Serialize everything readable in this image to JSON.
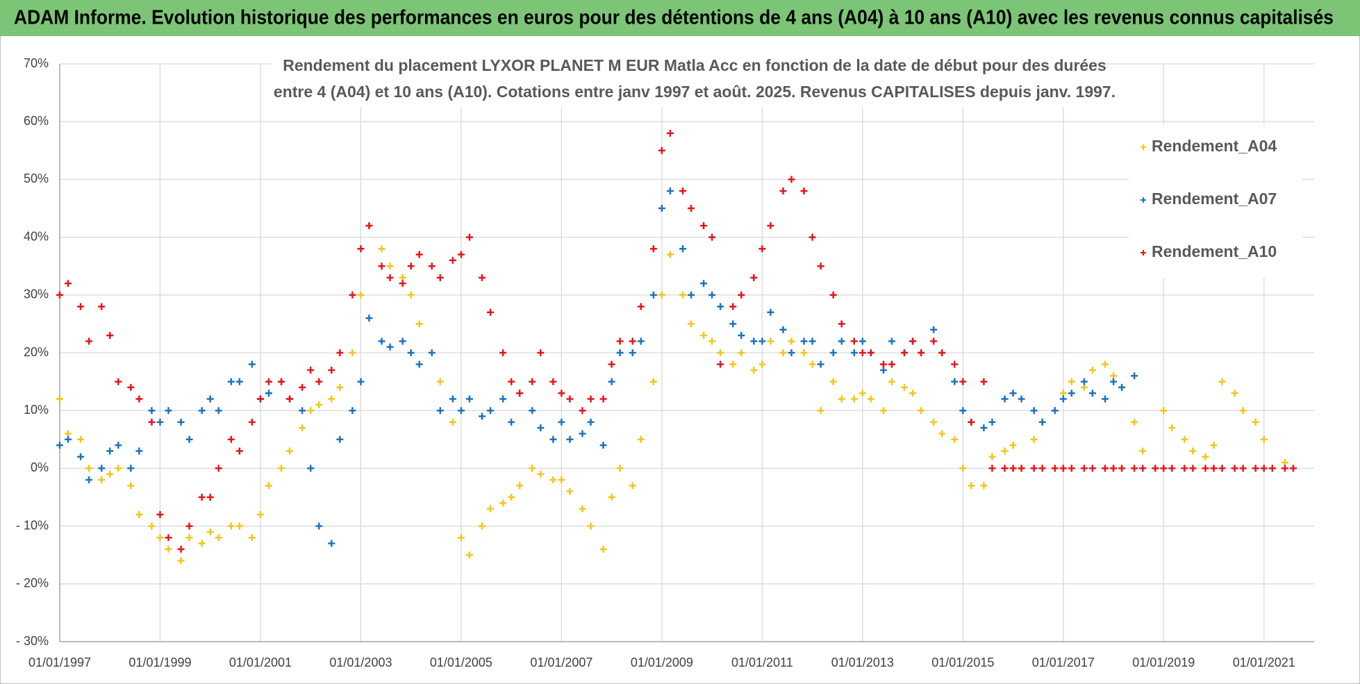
{
  "banner": "ADAM Informe. Evolution historique des performances en euros pour des détentions de 4 ans (A04) à 10 ans (A10) avec les revenus connus capitalisés",
  "chart_data": {
    "type": "scatter",
    "title": "Rendement du placement LYXOR PLANET M EUR Matla Acc en fonction de la date de début pour des durées",
    "subtitle": "entre 4 (A04) et 10 ans (A10). Cotations entre janv 1997 et août. 2025. Revenus CAPITALISES depuis janv. 1997.",
    "x": [
      "01/01/1997",
      "01/03/1997",
      "01/06/1997",
      "01/08/1997",
      "01/11/1997",
      "01/01/1998",
      "01/03/1998",
      "01/06/1998",
      "01/08/1998",
      "01/11/1998",
      "01/01/1999",
      "01/03/1999",
      "01/06/1999",
      "01/08/1999",
      "01/11/1999",
      "01/01/2000",
      "01/03/2000",
      "01/06/2000",
      "01/08/2000",
      "01/11/2000",
      "01/01/2001",
      "01/03/2001",
      "01/06/2001",
      "01/08/2001",
      "01/11/2001",
      "01/01/2002",
      "01/03/2002",
      "01/06/2002",
      "01/08/2002",
      "01/11/2002",
      "01/01/2003",
      "01/03/2003",
      "01/06/2003",
      "01/08/2003",
      "01/11/2003",
      "01/01/2004",
      "01/03/2004",
      "01/06/2004",
      "01/08/2004",
      "01/11/2004",
      "01/01/2005",
      "01/03/2005",
      "01/06/2005",
      "01/08/2005",
      "01/11/2005",
      "01/01/2006",
      "01/03/2006",
      "01/06/2006",
      "01/08/2006",
      "01/11/2006",
      "01/01/2007",
      "01/03/2007",
      "01/06/2007",
      "01/08/2007",
      "01/11/2007",
      "01/01/2008",
      "01/03/2008",
      "01/06/2008",
      "01/08/2008",
      "01/11/2008",
      "01/01/2009",
      "01/03/2009",
      "01/06/2009",
      "01/08/2009",
      "01/11/2009",
      "01/01/2010",
      "01/03/2010",
      "01/06/2010",
      "01/08/2010",
      "01/11/2010",
      "01/01/2011",
      "01/03/2011",
      "01/06/2011",
      "01/08/2011",
      "01/11/2011",
      "01/01/2012",
      "01/03/2012",
      "01/06/2012",
      "01/08/2012",
      "01/11/2012",
      "01/01/2013",
      "01/03/2013",
      "01/06/2013",
      "01/08/2013",
      "01/11/2013",
      "01/01/2014",
      "01/03/2014",
      "01/06/2014",
      "01/08/2014",
      "01/11/2014",
      "01/01/2015",
      "01/03/2015",
      "01/06/2015",
      "01/08/2015",
      "01/11/2015",
      "01/01/2016",
      "01/03/2016",
      "01/06/2016",
      "01/08/2016",
      "01/11/2016",
      "01/01/2017",
      "01/03/2017",
      "01/06/2017",
      "01/08/2017",
      "01/11/2017",
      "01/01/2018",
      "01/03/2018",
      "01/06/2018",
      "01/08/2018",
      "01/11/2018",
      "01/01/2019",
      "01/03/2019",
      "01/06/2019",
      "01/08/2019",
      "01/11/2019",
      "01/01/2020",
      "01/03/2020",
      "01/06/2020",
      "01/08/2020",
      "01/11/2020",
      "01/01/2021",
      "01/03/2021",
      "01/06/2021",
      "01/08/2021",
      "01/11/2021"
    ],
    "series": [
      {
        "name": "Rendement_A04",
        "color": "#f5c518",
        "values": [
          12,
          6,
          5,
          0,
          -2,
          -1,
          0,
          -3,
          -8,
          -10,
          -12,
          -14,
          -16,
          -12,
          -13,
          -11,
          -12,
          -10,
          -10,
          -12,
          -8,
          -3,
          0,
          3,
          7,
          10,
          11,
          12,
          14,
          20,
          30,
          42,
          38,
          35,
          33,
          30,
          25,
          20,
          15,
          8,
          -12,
          -15,
          -10,
          -7,
          -6,
          -5,
          -3,
          0,
          -1,
          -2,
          -2,
          -4,
          -7,
          -10,
          -14,
          -5,
          0,
          -3,
          5,
          15,
          30,
          37,
          30,
          25,
          23,
          22,
          20,
          18,
          20,
          17,
          18,
          22,
          20,
          22,
          20,
          18,
          10,
          15,
          12,
          12,
          13,
          12,
          10,
          15,
          14,
          13,
          10,
          8,
          6,
          5,
          0,
          -3,
          -3,
          2,
          3,
          4,
          0,
          5,
          8,
          10,
          13,
          15,
          14,
          17,
          18,
          16,
          14,
          8,
          3,
          0,
          10,
          7,
          5,
          3,
          2,
          4,
          15,
          13,
          10,
          8,
          5,
          0,
          1,
          null,
          null
        ]
      },
      {
        "name": "Rendement_A07",
        "color": "#1a73bf",
        "values": [
          4,
          5,
          2,
          -2,
          0,
          3,
          4,
          0,
          3,
          10,
          8,
          10,
          8,
          5,
          10,
          12,
          10,
          15,
          15,
          18,
          12,
          13,
          15,
          12,
          10,
          0,
          -10,
          -13,
          5,
          10,
          15,
          26,
          22,
          21,
          22,
          20,
          18,
          20,
          10,
          12,
          10,
          12,
          9,
          10,
          12,
          8,
          13,
          10,
          7,
          5,
          8,
          5,
          6,
          8,
          4,
          15,
          20,
          20,
          22,
          30,
          45,
          48,
          38,
          30,
          32,
          30,
          28,
          25,
          23,
          22,
          22,
          27,
          24,
          20,
          22,
          22,
          18,
          20,
          22,
          20,
          22,
          20,
          17,
          22,
          20,
          22,
          20,
          24,
          20,
          15,
          10,
          8,
          7,
          8,
          12,
          13,
          12,
          10,
          8,
          10,
          12,
          13,
          15,
          13,
          12,
          15,
          14,
          16,
          null,
          null,
          null,
          null,
          null,
          null,
          null,
          null,
          null,
          null,
          null,
          null,
          null,
          null,
          null,
          null,
          null
        ]
      },
      {
        "name": "Rendement_A10",
        "color": "#e8141b",
        "values": [
          30,
          32,
          28,
          22,
          28,
          23,
          15,
          14,
          12,
          8,
          -8,
          -12,
          -14,
          -10,
          -5,
          -5,
          0,
          5,
          3,
          8,
          12,
          15,
          15,
          12,
          14,
          17,
          15,
          17,
          20,
          30,
          38,
          42,
          35,
          33,
          32,
          35,
          37,
          35,
          33,
          36,
          37,
          40,
          33,
          27,
          20,
          15,
          13,
          15,
          20,
          15,
          13,
          12,
          10,
          12,
          12,
          18,
          22,
          22,
          28,
          38,
          55,
          58,
          48,
          45,
          42,
          40,
          18,
          28,
          30,
          33,
          38,
          42,
          48,
          50,
          48,
          40,
          35,
          30,
          25,
          22,
          20,
          20,
          18,
          18,
          20,
          22,
          20,
          22,
          20,
          18,
          15,
          8,
          15,
          0,
          0,
          0,
          0,
          0,
          0,
          0,
          0,
          0,
          0,
          0,
          0,
          0,
          0,
          0,
          0,
          0,
          0,
          0,
          0,
          0,
          0,
          0,
          0,
          0,
          0,
          0,
          0,
          0,
          0,
          0
        ]
      }
    ],
    "xlim": [
      "01/01/1997",
      "01/01/2022"
    ],
    "xticks": [
      "01/01/1997",
      "01/01/1999",
      "01/01/2001",
      "01/01/2003",
      "01/01/2005",
      "01/01/2007",
      "01/01/2009",
      "01/01/2011",
      "01/01/2013",
      "01/01/2015",
      "01/01/2017",
      "01/01/2019",
      "01/01/2021"
    ],
    "ylim": [
      -30,
      70
    ],
    "yticks": [
      {
        "value": -30,
        "label": "- 30%"
      },
      {
        "value": -20,
        "label": "- 20%"
      },
      {
        "value": -10,
        "label": "- 10%"
      },
      {
        "value": 0,
        "label": "0%"
      },
      {
        "value": 10,
        "label": "10%"
      },
      {
        "value": 20,
        "label": "20%"
      },
      {
        "value": 30,
        "label": "30%"
      },
      {
        "value": 40,
        "label": "40%"
      },
      {
        "value": 50,
        "label": "50%"
      },
      {
        "value": 60,
        "label": "60%"
      },
      {
        "value": 70,
        "label": "70%"
      }
    ],
    "grid": true,
    "legend": "top-right"
  }
}
